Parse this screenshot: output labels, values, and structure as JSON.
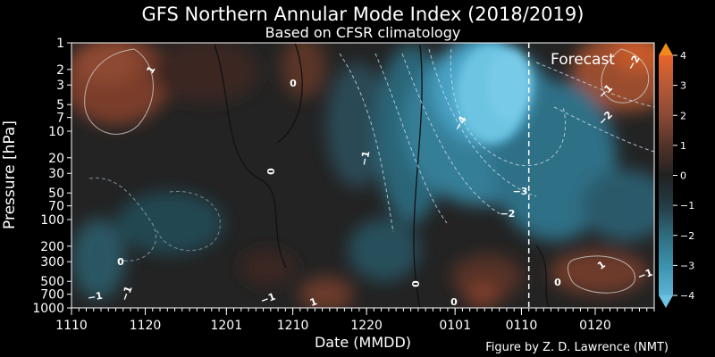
{
  "chart_data": {
    "type": "heatmap",
    "title": "GFS Northern Annular Mode Index (2018/2019)",
    "subtitle": "Based on CFSR climatology",
    "xlabel": "Date (MMDD)",
    "ylabel": "Pressure [hPa]",
    "credit": "Figure by Z. D. Lawrence (NMT)",
    "forecast_label": "Forecast",
    "x_range_days": [
      0,
      79
    ],
    "forecast_start_day": 62,
    "x_ticks": [
      {
        "label": "1110",
        "day": 0
      },
      {
        "label": "1120",
        "day": 10
      },
      {
        "label": "1201",
        "day": 21
      },
      {
        "label": "1210",
        "day": 30
      },
      {
        "label": "1220",
        "day": 40
      },
      {
        "label": "0101",
        "day": 52
      },
      {
        "label": "0110",
        "day": 61
      },
      {
        "label": "0120",
        "day": 71
      }
    ],
    "y_ticks": [
      "1",
      "2",
      "3",
      "5",
      "7",
      "10",
      "20",
      "30",
      "50",
      "70",
      "100",
      "200",
      "300",
      "500",
      "700",
      "1000"
    ],
    "y_range_hpa": [
      1000,
      1
    ],
    "colorbar": {
      "ticks": [
        "4",
        "3",
        "2",
        "1",
        "0",
        "−1",
        "−2",
        "−3",
        "−4"
      ],
      "range": [
        -4,
        4
      ],
      "extend": "both"
    },
    "contour_labels": [
      "1",
      "0",
      "0",
      "−1",
      "−4",
      "−2",
      "−3",
      "−2",
      "−1",
      "−2",
      "0",
      "0",
      "−1",
      "−1",
      "−1",
      "1",
      "0",
      "1",
      "0",
      "−1"
    ],
    "features": [
      {
        "name": "early-stratospheric-positive",
        "day": 6,
        "hpa": 2,
        "value": 1.2
      },
      {
        "name": "upper-positive-1210",
        "day": 29,
        "hpa": 2,
        "value": 0.6
      },
      {
        "name": "stratospheric-negative-core",
        "day": 53,
        "hpa": 5,
        "value": -4.0
      },
      {
        "name": "forecast-upper-positive",
        "day": 76,
        "hpa": 1,
        "value": 2.5
      },
      {
        "name": "tropospheric-positive-0120",
        "day": 72,
        "hpa": 400,
        "value": 1.5
      },
      {
        "name": "tropospheric-positive-1210",
        "day": 33,
        "hpa": 700,
        "value": 1.0
      }
    ]
  }
}
